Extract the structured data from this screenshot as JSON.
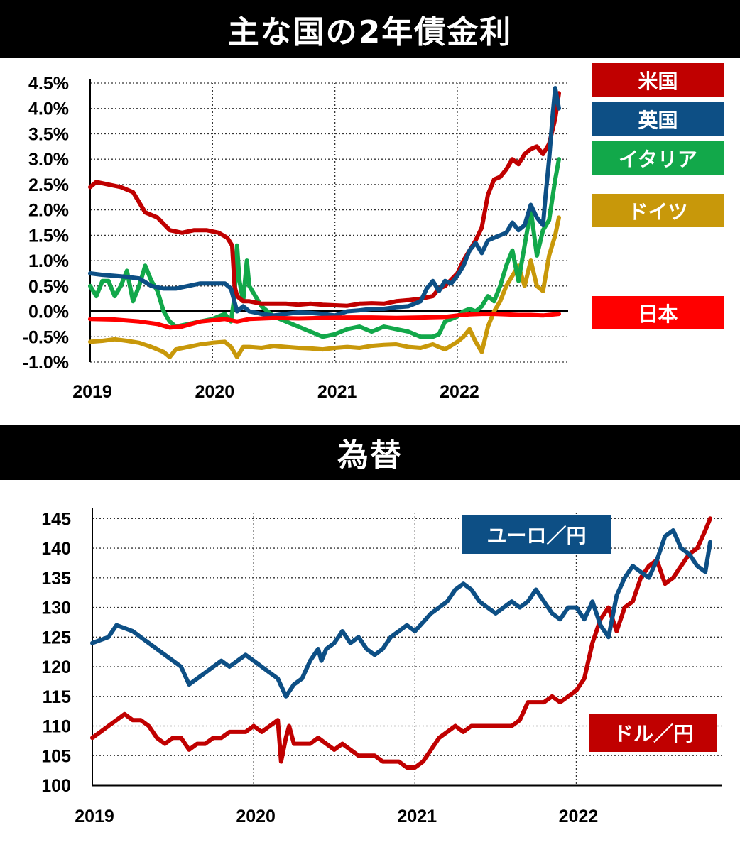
{
  "chart_data": [
    {
      "type": "line",
      "title": "主な国の2年債金利",
      "ylim": [
        -1.0,
        4.5
      ],
      "yticks": [
        "4.5%",
        "4.0%",
        "3.5%",
        "3.0%",
        "2.5%",
        "2.0%",
        "1.5%",
        "1.0%",
        "0.5%",
        "0.0%",
        "-0.5%",
        "-1.0%"
      ],
      "xticks": [
        "2019",
        "2020",
        "2021",
        "2022"
      ],
      "x_range": [
        2019.0,
        2022.83
      ],
      "grid": true,
      "legend_placement": "right",
      "series": [
        {
          "name": "米国",
          "color": "#c00000",
          "x": [
            2019.0,
            2019.05,
            2019.15,
            2019.25,
            2019.35,
            2019.45,
            2019.55,
            2019.65,
            2019.75,
            2019.85,
            2019.95,
            2020.05,
            2020.12,
            2020.16,
            2020.18,
            2020.2,
            2020.25,
            2020.3,
            2020.4,
            2020.5,
            2020.6,
            2020.7,
            2020.8,
            2020.9,
            2021.0,
            2021.1,
            2021.2,
            2021.3,
            2021.4,
            2021.5,
            2021.6,
            2021.7,
            2021.8,
            2021.85,
            2021.9,
            2022.0,
            2022.05,
            2022.1,
            2022.15,
            2022.2,
            2022.25,
            2022.3,
            2022.35,
            2022.4,
            2022.45,
            2022.5,
            2022.55,
            2022.6,
            2022.65,
            2022.7,
            2022.75,
            2022.8,
            2022.83
          ],
          "y": [
            2.45,
            2.55,
            2.5,
            2.45,
            2.35,
            1.95,
            1.85,
            1.6,
            1.55,
            1.6,
            1.6,
            1.55,
            1.45,
            1.3,
            0.5,
            0.3,
            0.2,
            0.2,
            0.15,
            0.15,
            0.15,
            0.13,
            0.15,
            0.13,
            0.12,
            0.11,
            0.15,
            0.16,
            0.15,
            0.2,
            0.22,
            0.25,
            0.3,
            0.45,
            0.5,
            0.75,
            1.0,
            1.2,
            1.4,
            1.65,
            2.3,
            2.6,
            2.65,
            2.8,
            3.0,
            2.9,
            3.1,
            3.2,
            3.25,
            3.1,
            3.3,
            3.8,
            4.3
          ]
        },
        {
          "name": "英国",
          "color": "#0d4f85",
          "x": [
            2019.0,
            2019.1,
            2019.2,
            2019.3,
            2019.4,
            2019.5,
            2019.6,
            2019.7,
            2019.8,
            2019.9,
            2020.0,
            2020.1,
            2020.15,
            2020.2,
            2020.25,
            2020.3,
            2020.4,
            2020.5,
            2020.6,
            2020.7,
            2020.8,
            2020.9,
            2021.0,
            2021.1,
            2021.2,
            2021.3,
            2021.4,
            2021.5,
            2021.6,
            2021.7,
            2021.75,
            2021.8,
            2021.85,
            2021.9,
            2021.95,
            2022.0,
            2022.05,
            2022.1,
            2022.15,
            2022.2,
            2022.25,
            2022.3,
            2022.35,
            2022.4,
            2022.45,
            2022.5,
            2022.55,
            2022.6,
            2022.65,
            2022.7,
            2022.72,
            2022.75,
            2022.78,
            2022.8,
            2022.83
          ],
          "y": [
            0.75,
            0.72,
            0.7,
            0.68,
            0.65,
            0.5,
            0.45,
            0.45,
            0.5,
            0.55,
            0.55,
            0.55,
            0.45,
            0.0,
            0.1,
            0.0,
            -0.05,
            -0.08,
            -0.05,
            -0.02,
            -0.03,
            -0.05,
            -0.08,
            0.0,
            0.02,
            0.05,
            0.05,
            0.08,
            0.1,
            0.2,
            0.45,
            0.6,
            0.4,
            0.6,
            0.55,
            0.7,
            0.9,
            1.2,
            1.35,
            1.15,
            1.4,
            1.45,
            1.5,
            1.55,
            1.75,
            1.6,
            1.7,
            2.1,
            1.85,
            1.7,
            2.25,
            3.0,
            3.9,
            4.4,
            4.0
          ]
        },
        {
          "name": "イタリア",
          "color": "#12a84a",
          "x": [
            2019.0,
            2019.05,
            2019.1,
            2019.15,
            2019.2,
            2019.25,
            2019.3,
            2019.35,
            2019.4,
            2019.45,
            2019.5,
            2019.55,
            2019.6,
            2019.65,
            2019.7,
            2019.8,
            2019.9,
            2020.0,
            2020.05,
            2020.1,
            2020.15,
            2020.18,
            2020.2,
            2020.22,
            2020.25,
            2020.28,
            2020.3,
            2020.35,
            2020.4,
            2020.5,
            2020.6,
            2020.7,
            2020.8,
            2020.9,
            2021.0,
            2021.1,
            2021.2,
            2021.3,
            2021.4,
            2021.5,
            2021.6,
            2021.7,
            2021.8,
            2021.85,
            2021.9,
            2022.0,
            2022.05,
            2022.1,
            2022.15,
            2022.2,
            2022.25,
            2022.3,
            2022.35,
            2022.4,
            2022.45,
            2022.5,
            2022.55,
            2022.6,
            2022.65,
            2022.7,
            2022.75,
            2022.8,
            2022.83
          ],
          "y": [
            0.5,
            0.3,
            0.6,
            0.6,
            0.3,
            0.5,
            0.8,
            0.2,
            0.5,
            0.9,
            0.6,
            0.4,
            0.0,
            -0.2,
            -0.3,
            -0.25,
            -0.2,
            -0.15,
            -0.1,
            -0.05,
            -0.2,
            0.3,
            1.3,
            0.6,
            0.2,
            1.0,
            0.5,
            0.3,
            0.1,
            -0.1,
            -0.2,
            -0.3,
            -0.4,
            -0.5,
            -0.45,
            -0.35,
            -0.3,
            -0.4,
            -0.3,
            -0.35,
            -0.4,
            -0.5,
            -0.5,
            -0.45,
            -0.2,
            -0.1,
            0.0,
            0.05,
            0.0,
            0.1,
            0.3,
            0.2,
            0.5,
            0.9,
            1.2,
            0.6,
            1.3,
            2.0,
            1.1,
            1.6,
            1.8,
            2.6,
            3.0
          ]
        },
        {
          "name": "ドイツ",
          "color": "#c8980a",
          "x": [
            2019.0,
            2019.1,
            2019.2,
            2019.3,
            2019.4,
            2019.5,
            2019.6,
            2019.65,
            2019.7,
            2019.8,
            2019.9,
            2020.0,
            2020.1,
            2020.15,
            2020.2,
            2020.25,
            2020.3,
            2020.4,
            2020.5,
            2020.6,
            2020.7,
            2020.8,
            2020.9,
            2021.0,
            2021.1,
            2021.2,
            2021.3,
            2021.4,
            2021.5,
            2021.6,
            2021.7,
            2021.8,
            2021.85,
            2021.9,
            2022.0,
            2022.05,
            2022.1,
            2022.15,
            2022.2,
            2022.25,
            2022.3,
            2022.35,
            2022.4,
            2022.45,
            2022.5,
            2022.55,
            2022.6,
            2022.65,
            2022.7,
            2022.75,
            2022.8,
            2022.83
          ],
          "y": [
            -0.6,
            -0.58,
            -0.55,
            -0.58,
            -0.62,
            -0.7,
            -0.8,
            -0.9,
            -0.75,
            -0.7,
            -0.65,
            -0.62,
            -0.6,
            -0.7,
            -0.9,
            -0.7,
            -0.7,
            -0.72,
            -0.68,
            -0.7,
            -0.72,
            -0.73,
            -0.75,
            -0.72,
            -0.7,
            -0.72,
            -0.68,
            -0.66,
            -0.65,
            -0.7,
            -0.72,
            -0.65,
            -0.7,
            -0.75,
            -0.6,
            -0.5,
            -0.35,
            -0.6,
            -0.8,
            -0.3,
            0.0,
            0.2,
            0.5,
            0.7,
            0.9,
            0.5,
            1.0,
            0.5,
            0.4,
            1.1,
            1.5,
            1.85
          ]
        },
        {
          "name": "日本",
          "color": "#ff0000",
          "x": [
            2019.0,
            2019.2,
            2019.4,
            2019.55,
            2019.65,
            2019.75,
            2019.9,
            2020.1,
            2020.2,
            2020.3,
            2020.5,
            2020.7,
            2020.9,
            2021.1,
            2021.3,
            2021.5,
            2021.7,
            2021.9,
            2022.0,
            2022.1,
            2022.2,
            2022.3,
            2022.4,
            2022.5,
            2022.6,
            2022.7,
            2022.83
          ],
          "y": [
            -0.15,
            -0.16,
            -0.2,
            -0.25,
            -0.32,
            -0.3,
            -0.2,
            -0.15,
            -0.2,
            -0.15,
            -0.13,
            -0.14,
            -0.13,
            -0.12,
            -0.12,
            -0.13,
            -0.12,
            -0.11,
            -0.08,
            -0.06,
            -0.05,
            -0.05,
            -0.06,
            -0.07,
            -0.07,
            -0.08,
            -0.05
          ]
        }
      ]
    },
    {
      "type": "line",
      "title": "為替",
      "ylim": [
        100,
        146
      ],
      "yticks": [
        "145",
        "140",
        "135",
        "130",
        "125",
        "120",
        "115",
        "110",
        "105",
        "100"
      ],
      "xticks": [
        "2019",
        "2020",
        "2021",
        "2022"
      ],
      "x_range": [
        2019.0,
        2022.83
      ],
      "grid": true,
      "series": [
        {
          "name": "ユーロ／円",
          "color": "#0d4f85",
          "x": [
            2019.0,
            2019.1,
            2019.15,
            2019.25,
            2019.35,
            2019.45,
            2019.5,
            2019.55,
            2019.6,
            2019.65,
            2019.7,
            2019.75,
            2019.8,
            2019.85,
            2019.9,
            2019.95,
            2020.0,
            2020.05,
            2020.1,
            2020.15,
            2020.2,
            2020.25,
            2020.3,
            2020.35,
            2020.4,
            2020.42,
            2020.45,
            2020.5,
            2020.55,
            2020.6,
            2020.65,
            2020.7,
            2020.75,
            2020.8,
            2020.85,
            2020.9,
            2020.95,
            2021.0,
            2021.1,
            2021.15,
            2021.2,
            2021.25,
            2021.3,
            2021.35,
            2021.4,
            2021.45,
            2021.5,
            2021.55,
            2021.6,
            2021.65,
            2021.7,
            2021.75,
            2021.8,
            2021.85,
            2021.9,
            2021.95,
            2022.0,
            2022.05,
            2022.1,
            2022.15,
            2022.2,
            2022.25,
            2022.3,
            2022.35,
            2022.4,
            2022.45,
            2022.5,
            2022.55,
            2022.6,
            2022.65,
            2022.7,
            2022.75,
            2022.8,
            2022.83
          ],
          "y": [
            124,
            125,
            127,
            126,
            124,
            122,
            121,
            120,
            117,
            118,
            119,
            120,
            121,
            120,
            121,
            122,
            121,
            120,
            119,
            118,
            115,
            117,
            118,
            121,
            123,
            121,
            123,
            124,
            126,
            124,
            125,
            123,
            122,
            123,
            125,
            126,
            127,
            126,
            129,
            130,
            131,
            133,
            134,
            133,
            131,
            130,
            129,
            130,
            131,
            130,
            131,
            133,
            131,
            129,
            128,
            130,
            130,
            128,
            131,
            127,
            125,
            132,
            135,
            137,
            136,
            135,
            138,
            142,
            143,
            140,
            139,
            137,
            136,
            141
          ]
        },
        {
          "name": "ドル／円",
          "color": "#c00000",
          "x": [
            2019.0,
            2019.05,
            2019.1,
            2019.15,
            2019.2,
            2019.25,
            2019.3,
            2019.35,
            2019.4,
            2019.45,
            2019.5,
            2019.55,
            2019.6,
            2019.65,
            2019.7,
            2019.75,
            2019.8,
            2019.85,
            2019.9,
            2019.95,
            2020.0,
            2020.05,
            2020.1,
            2020.15,
            2020.17,
            2020.2,
            2020.22,
            2020.25,
            2020.3,
            2020.35,
            2020.4,
            2020.45,
            2020.5,
            2020.55,
            2020.6,
            2020.65,
            2020.7,
            2020.75,
            2020.8,
            2020.85,
            2020.9,
            2020.95,
            2021.0,
            2021.05,
            2021.1,
            2021.15,
            2021.2,
            2021.25,
            2021.3,
            2021.35,
            2021.4,
            2021.45,
            2021.5,
            2021.55,
            2021.6,
            2021.65,
            2021.7,
            2021.75,
            2021.8,
            2021.85,
            2021.9,
            2021.95,
            2022.0,
            2022.05,
            2022.1,
            2022.15,
            2022.2,
            2022.25,
            2022.3,
            2022.35,
            2022.4,
            2022.45,
            2022.5,
            2022.55,
            2022.6,
            2022.65,
            2022.7,
            2022.75,
            2022.8,
            2022.83
          ],
          "y": [
            108,
            109,
            110,
            111,
            112,
            111,
            111,
            110,
            108,
            107,
            108,
            108,
            106,
            107,
            107,
            108,
            108,
            109,
            109,
            109,
            110,
            109,
            110,
            111,
            104,
            108,
            110,
            107,
            107,
            107,
            108,
            107,
            106,
            107,
            106,
            105,
            105,
            105,
            104,
            104,
            104,
            103,
            103,
            104,
            106,
            108,
            109,
            110,
            109,
            110,
            110,
            110,
            110,
            110,
            110,
            111,
            114,
            114,
            114,
            115,
            114,
            115,
            116,
            118,
            124,
            128,
            130,
            126,
            130,
            131,
            135,
            137,
            138,
            134,
            135,
            137,
            139,
            140,
            143,
            145
          ]
        }
      ]
    }
  ]
}
